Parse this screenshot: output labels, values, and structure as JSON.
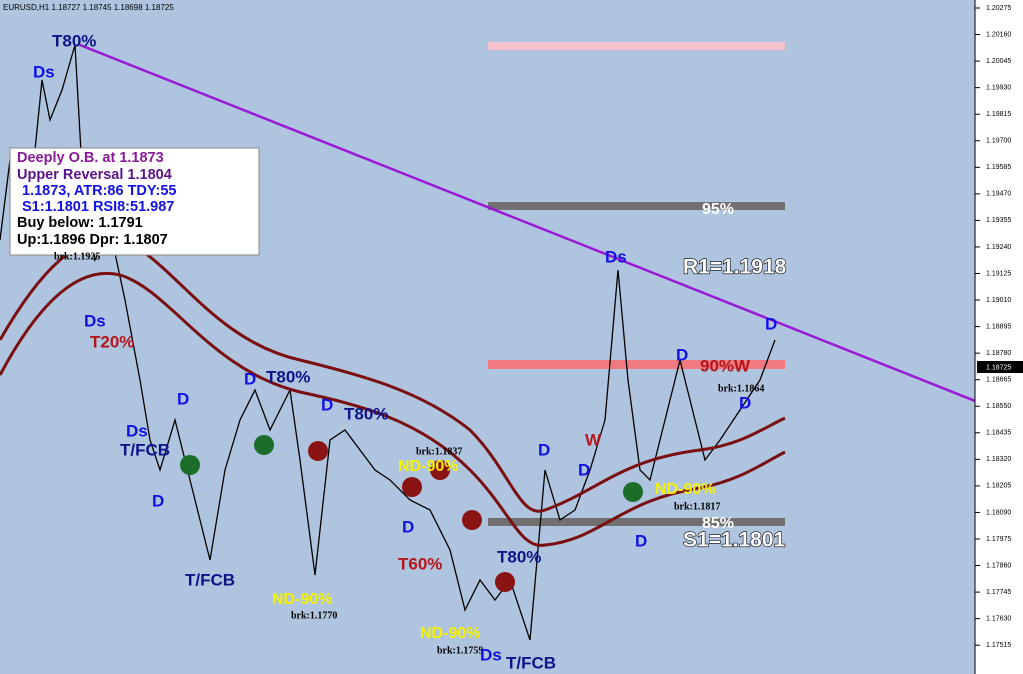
{
  "header": "EURUSD,H1  1.18727 1.18745 1.18698 1.18725",
  "price_axis": [
    "1.20275",
    "1.20160",
    "1.20045",
    "1.19930",
    "1.19815",
    "1.19700",
    "1.19585",
    "1.19470",
    "1.19355",
    "1.19240",
    "1.19125",
    "1.19010",
    "1.18895",
    "1.18780",
    "1.18665",
    "1.18550",
    "1.18435",
    "1.18320",
    "1.18205",
    "1.18090",
    "1.17975",
    "1.17860",
    "1.17745",
    "1.17630",
    "1.17515"
  ],
  "current_price": "1.18725",
  "info_box": [
    "Deeply O.B. at 1.1873",
    "Upper Reversal 1.1804",
    "1.1873, ATR:86 TDY:55",
    "S1:1.1801 RSI8:51.987",
    "Buy below: 1.1791",
    "Up:1.1896 Dpr: 1.1807"
  ],
  "annotations": [
    "T80%",
    "Ds",
    "brk:1.1925",
    "R1=1.1918",
    "95%",
    "90%W",
    "85%",
    "S1=1.1801",
    "Ds",
    "T20%",
    "D",
    "T80%",
    "D",
    "D",
    "T80%",
    "Ds",
    "T/FCB",
    "D",
    "W",
    "D",
    "brk:1.1837",
    "ND-90%",
    "D",
    "D",
    "T60%",
    "T80%",
    "D",
    "ND-90%",
    "brk:1.1817",
    "T/FCB",
    "ND-90%",
    "brk:1.1770",
    "ND-90%",
    "brk:1.1759",
    "Ds",
    "T/FCB",
    "Ds",
    "D",
    "D",
    "brk:1.1864",
    "D"
  ]
}
